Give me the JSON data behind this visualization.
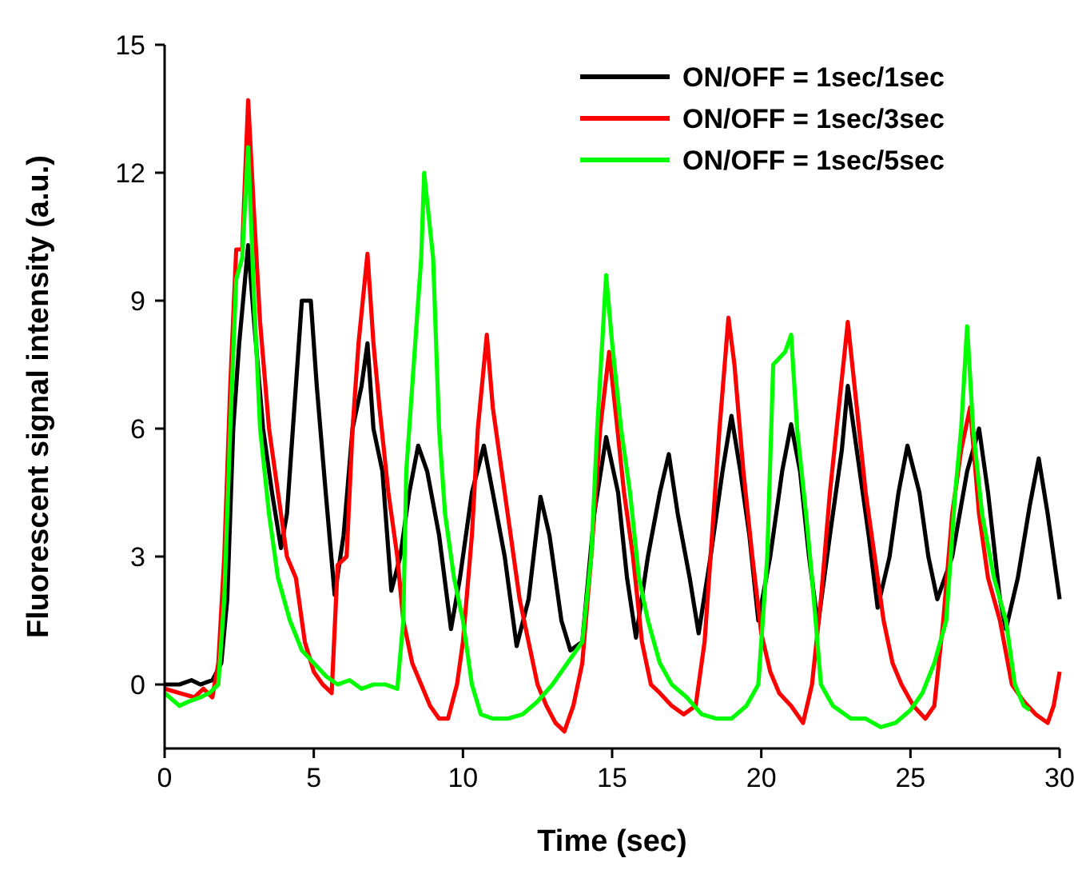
{
  "chart_data": {
    "type": "line",
    "xlabel": "Time (sec)",
    "ylabel": "Fluorescent signal intensity (a.u.)",
    "xlim": [
      0,
      30
    ],
    "xticks": [
      0,
      5,
      10,
      15,
      20,
      25,
      30
    ],
    "ylim": [
      -1.5,
      15
    ],
    "yticks": [
      0,
      3,
      6,
      9,
      12,
      15
    ],
    "grid": false,
    "legend": "top right",
    "marker": "none",
    "line_style": "solid",
    "series": [
      {
        "name": "ON/OFF = 1sec/1sec",
        "color": "#000000",
        "x": [
          0,
          0.5,
          0.9,
          1.2,
          1.6,
          1.9,
          2.1,
          2.3,
          2.5,
          2.8,
          3.0,
          3.3,
          3.6,
          3.9,
          4.1,
          4.3,
          4.6,
          4.9,
          5.1,
          5.4,
          5.7,
          6.0,
          6.3,
          6.6,
          6.8,
          7.0,
          7.3,
          7.6,
          7.9,
          8.2,
          8.5,
          8.8,
          9.2,
          9.6,
          9.9,
          10.3,
          10.7,
          11.0,
          11.4,
          11.8,
          12.2,
          12.6,
          12.9,
          13.3,
          13.6,
          14.0,
          14.4,
          14.8,
          15.2,
          15.5,
          15.8,
          16.2,
          16.6,
          16.9,
          17.2,
          17.6,
          17.9,
          18.3,
          18.7,
          19.0,
          19.3,
          19.6,
          19.9,
          20.3,
          20.7,
          21.0,
          21.3,
          21.6,
          21.9,
          22.3,
          22.7,
          22.9,
          23.2,
          23.6,
          23.9,
          24.3,
          24.6,
          24.9,
          25.3,
          25.6,
          25.9,
          26.4,
          26.9,
          27.3,
          27.6,
          28.0,
          28.2,
          28.6,
          29.0,
          29.3,
          29.6,
          29.8,
          30
        ],
        "values": [
          0,
          0,
          0.1,
          0,
          0.1,
          0.5,
          2,
          6,
          8,
          10.3,
          8.5,
          6,
          4.5,
          3.2,
          4,
          6,
          9,
          9,
          7,
          4.5,
          2.1,
          3.5,
          6,
          7,
          8,
          6,
          5,
          2.2,
          3,
          4.5,
          5.6,
          5,
          3.5,
          1.3,
          2.5,
          4.5,
          5.6,
          4.5,
          3,
          0.9,
          2,
          4.4,
          3.5,
          1.5,
          0.8,
          1,
          4,
          5.8,
          4.5,
          2.5,
          1.1,
          3,
          4.5,
          5.4,
          4,
          2.5,
          1.2,
          3,
          5,
          6.3,
          5,
          3.5,
          1.5,
          3,
          5,
          6.1,
          5,
          3,
          1.4,
          3.5,
          5.5,
          7,
          5.5,
          3.5,
          1.8,
          3,
          4.5,
          5.6,
          4.5,
          3,
          2,
          3,
          5,
          6,
          4.5,
          2,
          1.3,
          2.5,
          4.2,
          5.3,
          4,
          3,
          2
        ]
      },
      {
        "name": "ON/OFF = 1sec/3sec",
        "color": "#ff0000",
        "x": [
          0,
          0.5,
          1.0,
          1.3,
          1.6,
          1.8,
          2.0,
          2.2,
          2.4,
          2.6,
          2.8,
          3.0,
          3.2,
          3.5,
          3.8,
          4.1,
          4.4,
          4.7,
          5.0,
          5.3,
          5.6,
          5.8,
          6.1,
          6.3,
          6.5,
          6.8,
          7.0,
          7.2,
          7.5,
          7.8,
          8.0,
          8.3,
          8.6,
          8.9,
          9.2,
          9.5,
          9.8,
          10.0,
          10.3,
          10.5,
          10.8,
          11.0,
          11.3,
          11.6,
          11.9,
          12.2,
          12.5,
          12.8,
          13.1,
          13.4,
          13.7,
          14.0,
          14.3,
          14.6,
          14.9,
          15.1,
          15.4,
          15.7,
          16.0,
          16.3,
          16.6,
          17.0,
          17.4,
          17.8,
          18.1,
          18.3,
          18.6,
          18.9,
          19.1,
          19.4,
          19.7,
          20.0,
          20.3,
          20.6,
          21.0,
          21.4,
          21.7,
          22.0,
          22.3,
          22.6,
          22.9,
          23.2,
          23.5,
          23.8,
          24.1,
          24.4,
          24.7,
          25.1,
          25.5,
          25.8,
          26.1,
          26.4,
          26.7,
          27.0,
          27.3,
          27.6,
          28.0,
          28.4,
          28.8,
          29.2,
          29.6,
          29.8,
          30
        ],
        "values": [
          -0.1,
          -0.2,
          -0.3,
          -0.1,
          -0.3,
          0.5,
          3,
          7,
          10.2,
          10.2,
          13.7,
          11,
          8.5,
          6,
          4.5,
          3,
          2.5,
          1,
          0.3,
          0,
          -0.2,
          2.8,
          3,
          6,
          8,
          10.1,
          8,
          6.5,
          4.5,
          3,
          1.5,
          0.5,
          0,
          -0.5,
          -0.8,
          -0.8,
          0,
          1,
          3.5,
          6,
          8.2,
          6.5,
          5,
          3.5,
          2,
          1,
          0,
          -0.5,
          -0.9,
          -1.1,
          -0.5,
          0.5,
          3,
          6,
          7.8,
          6.5,
          4.5,
          3,
          1,
          0,
          -0.2,
          -0.5,
          -0.7,
          -0.5,
          1,
          3,
          6,
          8.6,
          7.5,
          5,
          3,
          1.2,
          0.3,
          -0.2,
          -0.5,
          -0.9,
          0,
          2,
          4.5,
          6.5,
          8.5,
          6.5,
          4.5,
          3,
          1.5,
          0.5,
          0,
          -0.5,
          -0.8,
          -0.5,
          1.5,
          4,
          5.5,
          6.5,
          4,
          2.5,
          1.5,
          0,
          -0.4,
          -0.7,
          -0.9,
          -0.5,
          0.3
        ]
      },
      {
        "name": "ON/OFF = 1sec/5sec",
        "color": "#00ff00",
        "x": [
          0,
          0.5,
          0.8,
          1.2,
          1.5,
          1.8,
          2.0,
          2.2,
          2.4,
          2.6,
          2.8,
          3.0,
          3.2,
          3.5,
          3.8,
          4.2,
          4.6,
          5.0,
          5.4,
          5.8,
          6.2,
          6.6,
          7.0,
          7.4,
          7.8,
          8.0,
          8.1,
          8.4,
          8.6,
          8.7,
          9.0,
          9.2,
          9.4,
          9.7,
          10.0,
          10.3,
          10.6,
          11.0,
          11.5,
          12.0,
          12.5,
          13.0,
          13.5,
          14.0,
          14.3,
          14.5,
          14.8,
          15.0,
          15.3,
          15.6,
          15.9,
          16.2,
          16.6,
          17.0,
          17.5,
          18.0,
          18.5,
          19.0,
          19.5,
          19.9,
          20.2,
          20.4,
          20.8,
          21.0,
          21.2,
          21.5,
          21.7,
          22.0,
          22.4,
          23.0,
          23.5,
          24.0,
          24.5,
          25.0,
          25.4,
          25.8,
          26.2,
          26.5,
          26.7,
          26.9,
          27.1,
          27.4,
          27.8,
          28.2,
          28.5,
          28.8,
          29.0
        ],
        "values": [
          -0.2,
          -0.5,
          -0.4,
          -0.3,
          -0.2,
          0,
          2,
          6,
          9.5,
          10,
          12.6,
          9,
          6,
          4,
          2.5,
          1.5,
          0.8,
          0.5,
          0.2,
          0,
          0.1,
          -0.1,
          0,
          0,
          -0.1,
          1.5,
          5,
          8,
          10,
          12,
          10,
          6,
          4,
          2.5,
          1.5,
          0,
          -0.7,
          -0.8,
          -0.8,
          -0.7,
          -0.4,
          0,
          0.5,
          1,
          3,
          6,
          9.6,
          8,
          6,
          4.5,
          2.5,
          1.5,
          0.5,
          0,
          -0.3,
          -0.7,
          -0.8,
          -0.8,
          -0.5,
          0,
          3,
          7.5,
          7.8,
          8.2,
          6,
          4,
          2.5,
          0,
          -0.5,
          -0.8,
          -0.8,
          -1,
          -0.9,
          -0.6,
          -0.2,
          0.5,
          1.5,
          4.5,
          6,
          8.4,
          6,
          4,
          2.5,
          1.5,
          0,
          -0.5,
          -0.6
        ]
      }
    ]
  }
}
